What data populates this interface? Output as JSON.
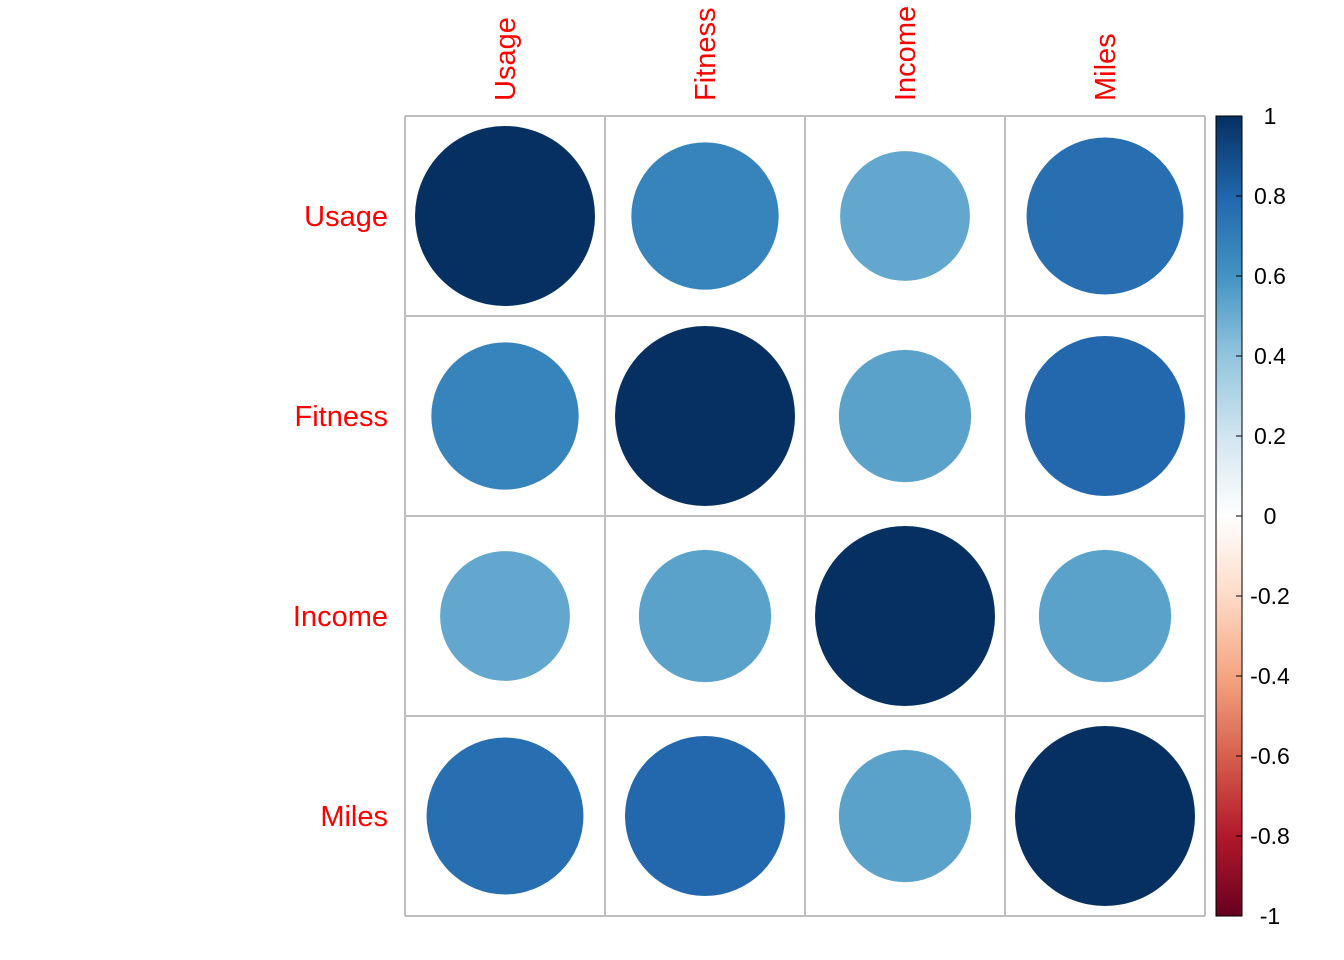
{
  "chart_data": {
    "type": "heatmap",
    "method": "circle",
    "variables": [
      "Usage",
      "Fitness",
      "Income",
      "Miles"
    ],
    "matrix": [
      [
        1.0,
        0.67,
        0.52,
        0.76
      ],
      [
        0.67,
        1.0,
        0.54,
        0.79
      ],
      [
        0.52,
        0.54,
        1.0,
        0.54
      ],
      [
        0.76,
        0.79,
        0.54,
        1.0
      ]
    ],
    "label_color": "#ff0000",
    "grid": true,
    "colorbar": {
      "range": [
        -1,
        1
      ],
      "ticks": [
        "1",
        "0.8",
        "0.6",
        "0.4",
        "0.2",
        "0",
        "-0.2",
        "-0.4",
        "-0.6",
        "-0.8",
        "-1"
      ],
      "placement": "right",
      "palette": [
        "#67001f",
        "#b2182b",
        "#d6604d",
        "#f4a582",
        "#fddbc7",
        "#ffffff",
        "#d1e5f0",
        "#92c5de",
        "#4393c3",
        "#2166ac",
        "#053061"
      ]
    }
  }
}
